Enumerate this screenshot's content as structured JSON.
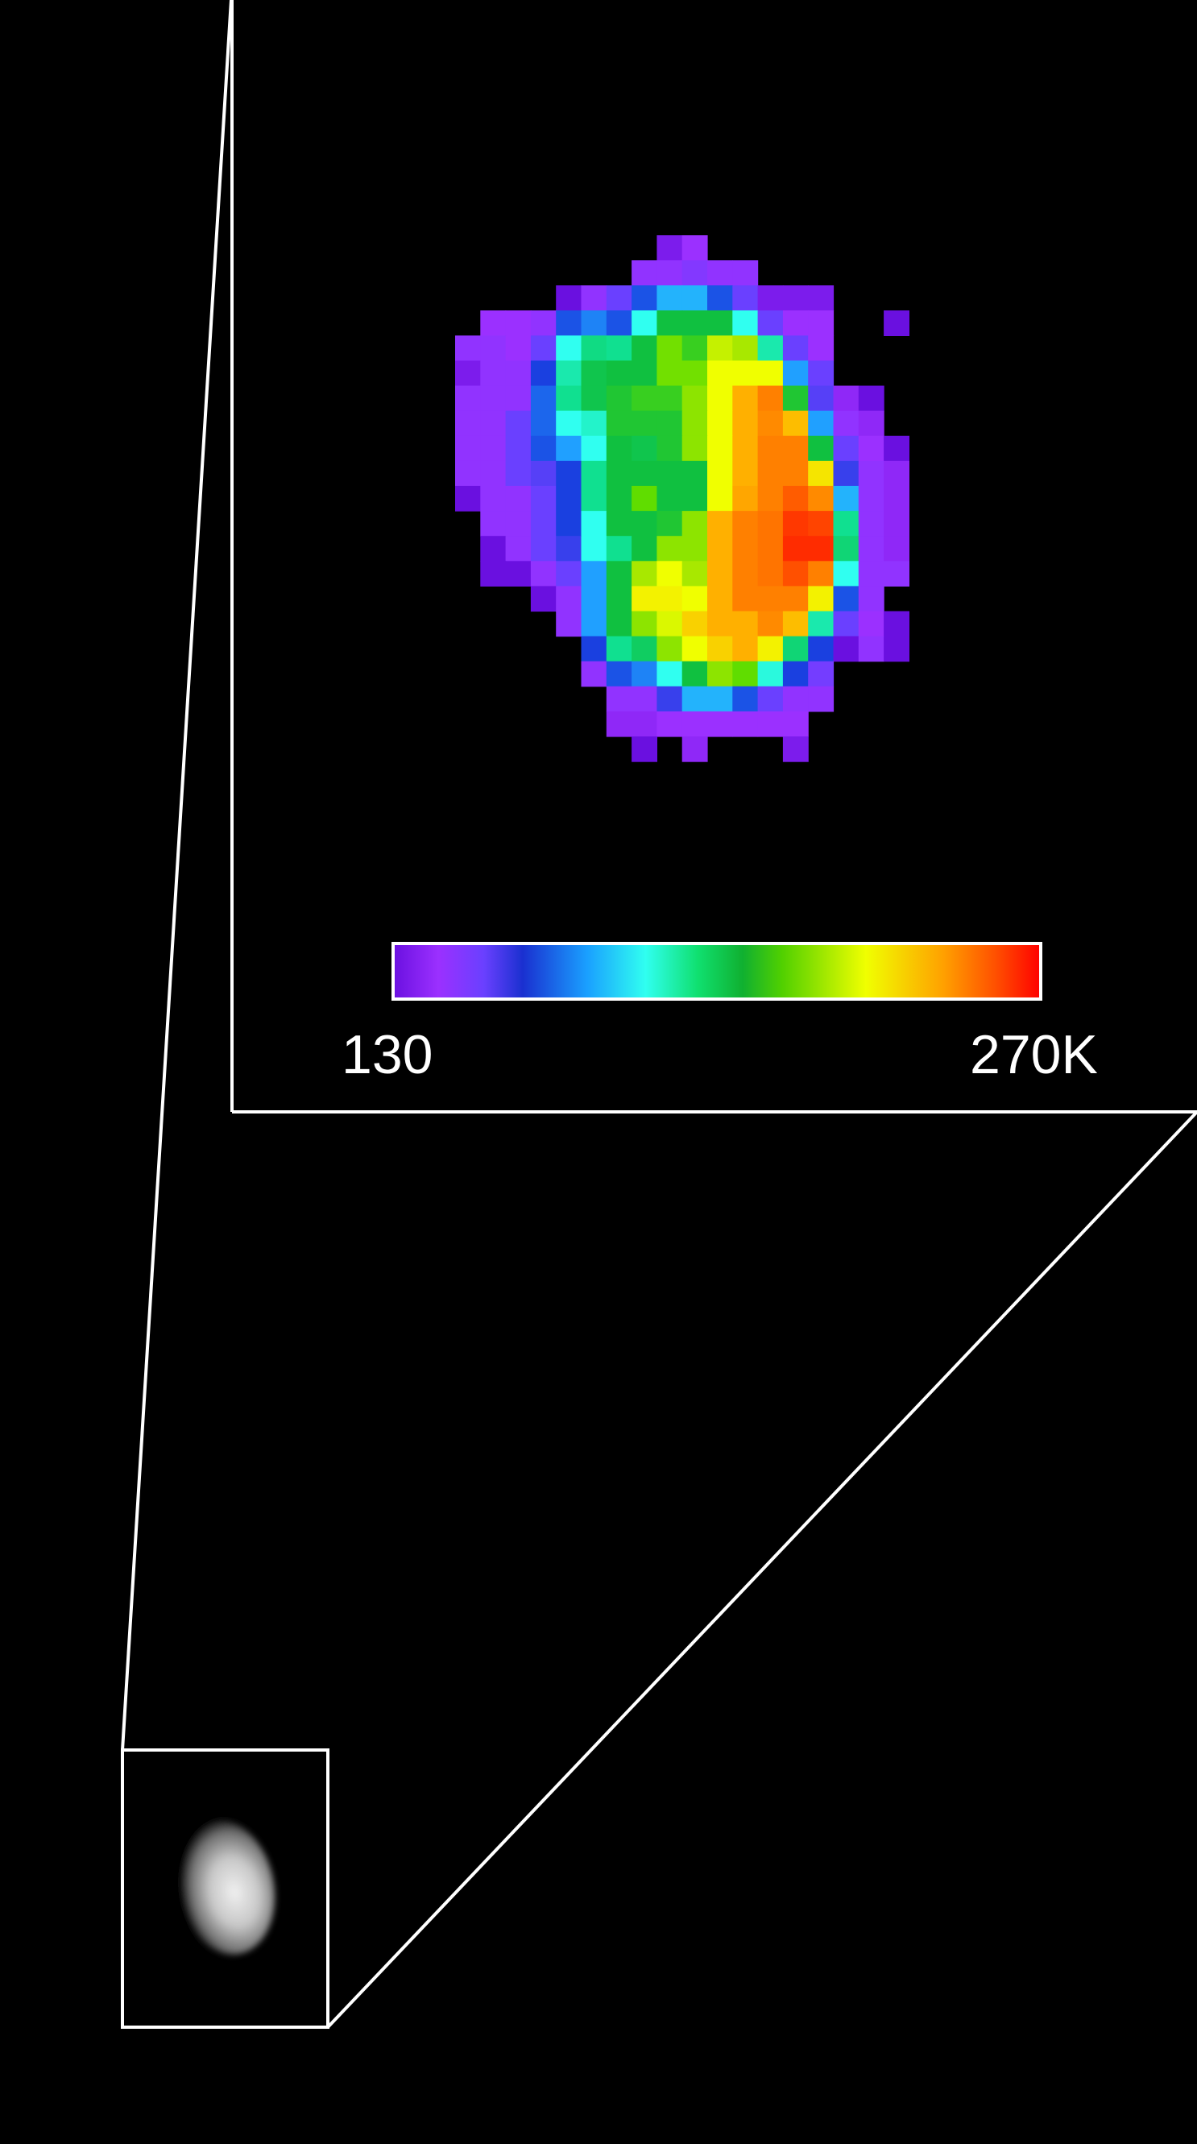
{
  "colorbar": {
    "min_label": "130",
    "max_label": "270K",
    "min": 130,
    "max": 270,
    "colormap": [
      "#6a10e0",
      "#9b30ff",
      "#6a40ff",
      "#1a30d0",
      "#1aa0ff",
      "#30fff0",
      "#10e070",
      "#10b030",
      "#50d000",
      "#f0ff00",
      "#ffa000",
      "#ff5000",
      "#ff0000"
    ]
  },
  "chart_data": {
    "type": "heatmap",
    "unit": "K",
    "range": [
      130,
      270
    ],
    "grid": [
      [
        null,
        null,
        null,
        null,
        null,
        null,
        null,
        null,
        135,
        140,
        null,
        null,
        null,
        null,
        null,
        null,
        null,
        null
      ],
      [
        null,
        null,
        null,
        null,
        null,
        null,
        null,
        142,
        142,
        145,
        142,
        142,
        null,
        null,
        null,
        null,
        null,
        null
      ],
      [
        null,
        null,
        null,
        null,
        132,
        142,
        150,
        160,
        170,
        170,
        160,
        150,
        135,
        135,
        135,
        null,
        null,
        null
      ],
      [
        null,
        140,
        140,
        142,
        160,
        165,
        160,
        178,
        200,
        200,
        200,
        178,
        150,
        140,
        140,
        null,
        null,
        132
      ],
      [
        142,
        142,
        140,
        150,
        178,
        190,
        188,
        200,
        212,
        205,
        222,
        218,
        185,
        150,
        140,
        null,
        null,
        null
      ],
      [
        135,
        142,
        142,
        158,
        185,
        198,
        200,
        200,
        212,
        212,
        228,
        228,
        228,
        168,
        150,
        null,
        null,
        null
      ],
      [
        142,
        142,
        142,
        162,
        188,
        198,
        202,
        205,
        205,
        215,
        228,
        240,
        250,
        202,
        152,
        138,
        132,
        null
      ],
      [
        142,
        142,
        150,
        162,
        178,
        182,
        202,
        202,
        202,
        215,
        228,
        240,
        248,
        238,
        168,
        142,
        138,
        null
      ],
      [
        142,
        142,
        150,
        160,
        168,
        178,
        200,
        198,
        202,
        215,
        228,
        240,
        250,
        250,
        200,
        150,
        140,
        132
      ],
      [
        142,
        142,
        150,
        152,
        158,
        188,
        200,
        200,
        200,
        200,
        228,
        240,
        250,
        250,
        232,
        155,
        142,
        138
      ],
      [
        132,
        142,
        142,
        150,
        158,
        188,
        200,
        210,
        200,
        200,
        228,
        242,
        250,
        256,
        248,
        170,
        142,
        138
      ],
      [
        null,
        142,
        142,
        150,
        158,
        178,
        200,
        200,
        202,
        215,
        240,
        250,
        252,
        262,
        260,
        188,
        142,
        138
      ],
      [
        null,
        132,
        142,
        150,
        155,
        178,
        188,
        200,
        215,
        215,
        240,
        250,
        252,
        264,
        264,
        192,
        142,
        138
      ],
      [
        null,
        132,
        132,
        142,
        150,
        168,
        200,
        218,
        228,
        218,
        240,
        250,
        252,
        258,
        250,
        178,
        142,
        142
      ],
      [
        null,
        null,
        null,
        132,
        142,
        168,
        200,
        230,
        230,
        228,
        240,
        250,
        250,
        250,
        230,
        160,
        142,
        null
      ],
      [
        null,
        null,
        null,
        null,
        142,
        168,
        200,
        215,
        225,
        235,
        240,
        240,
        248,
        238,
        185,
        150,
        140,
        132
      ],
      [
        null,
        null,
        null,
        null,
        null,
        158,
        188,
        195,
        215,
        228,
        235,
        240,
        230,
        192,
        158,
        132,
        142,
        132
      ],
      [
        null,
        null,
        null,
        null,
        null,
        142,
        160,
        165,
        178,
        200,
        215,
        210,
        180,
        158,
        148,
        null,
        null,
        null
      ],
      [
        null,
        null,
        null,
        null,
        null,
        null,
        142,
        142,
        155,
        170,
        170,
        160,
        150,
        142,
        142,
        null,
        null,
        null
      ],
      [
        null,
        null,
        null,
        null,
        null,
        null,
        138,
        138,
        140,
        140,
        140,
        140,
        140,
        140,
        null,
        null,
        null,
        null
      ],
      [
        null,
        null,
        null,
        null,
        null,
        null,
        null,
        132,
        null,
        138,
        null,
        null,
        null,
        135,
        null,
        null,
        null,
        null
      ]
    ]
  }
}
